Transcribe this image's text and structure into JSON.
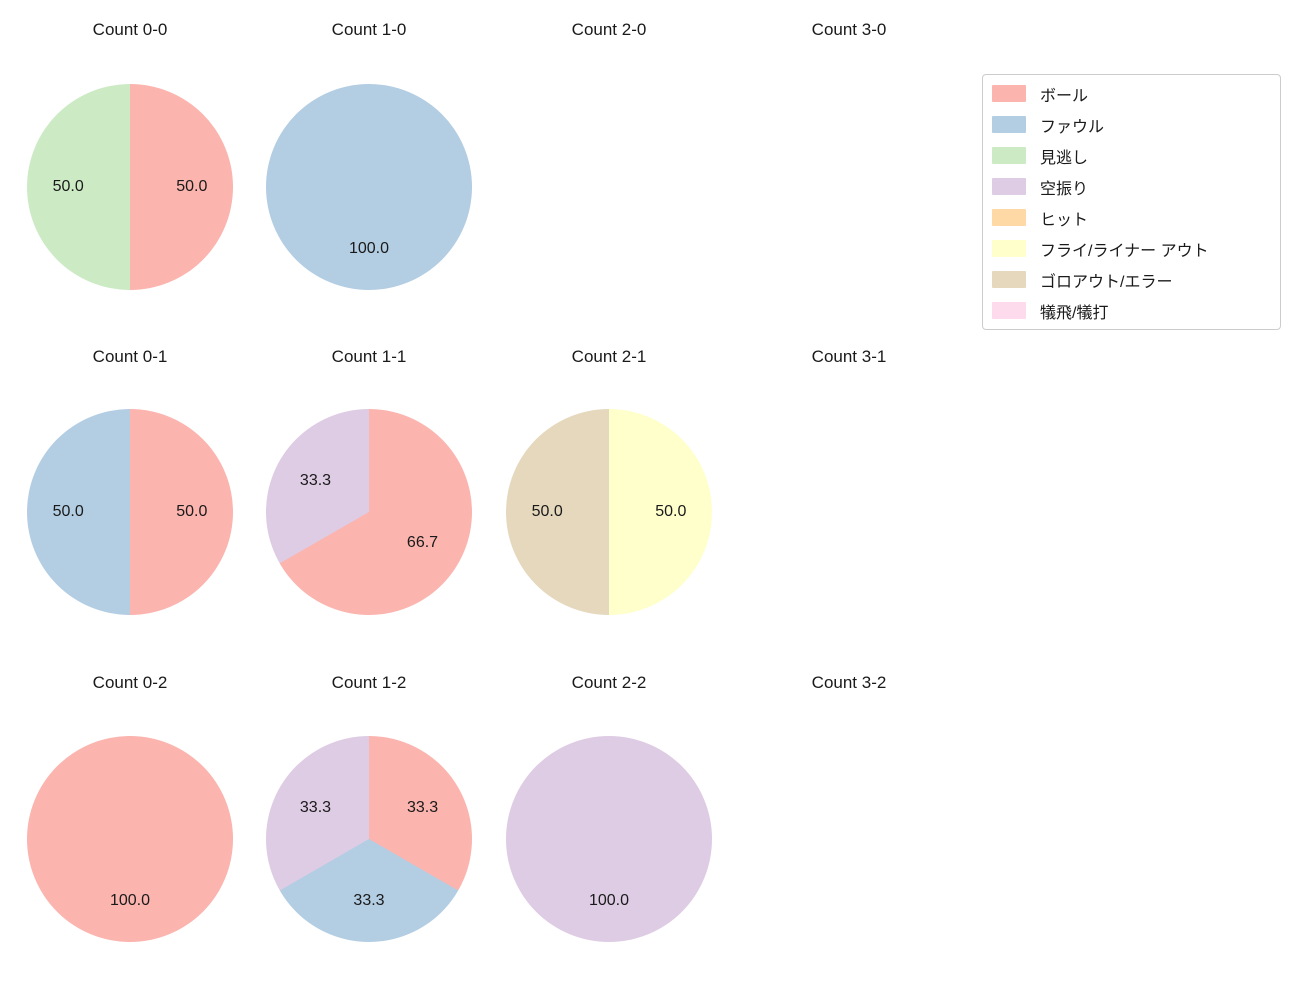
{
  "page": {
    "background": "#ffffff"
  },
  "legend": {
    "position": "upper right",
    "items": [
      {
        "label": "ボール",
        "color": "#fbb4ae"
      },
      {
        "label": "ファウル",
        "color": "#b3cde3"
      },
      {
        "label": "見逃し",
        "color": "#ccebc5"
      },
      {
        "label": "空振り",
        "color": "#decbe4"
      },
      {
        "label": "ヒット",
        "color": "#fed9a6"
      },
      {
        "label": "フライ/ライナー アウト",
        "color": "#ffffcc"
      },
      {
        "label": "ゴロアウト/エラー",
        "color": "#e5d8bd"
      },
      {
        "label": "犠飛/犠打",
        "color": "#fddaec"
      }
    ]
  },
  "chart_layout": {
    "grid": "3 rows x 4 columns",
    "startangle": 90,
    "counterclock": false,
    "pctdistance": 0.6,
    "label_color": "#1a1a1a"
  },
  "chart_data": [
    {
      "type": "pie",
      "title": "Count 0-0",
      "slices": [
        {
          "label": "ボール",
          "value": 50.0,
          "pct_text": "50.0",
          "color": "#fbb4ae"
        },
        {
          "label": "見逃し",
          "value": 50.0,
          "pct_text": "50.0",
          "color": "#ccebc5"
        }
      ]
    },
    {
      "type": "pie",
      "title": "Count 1-0",
      "slices": [
        {
          "label": "ファウル",
          "value": 100.0,
          "pct_text": "100.0",
          "color": "#b3cde3"
        }
      ]
    },
    {
      "type": "pie",
      "title": "Count 2-0",
      "slices": []
    },
    {
      "type": "pie",
      "title": "Count 3-0",
      "slices": []
    },
    {
      "type": "pie",
      "title": "Count 0-1",
      "slices": [
        {
          "label": "ボール",
          "value": 50.0,
          "pct_text": "50.0",
          "color": "#fbb4ae"
        },
        {
          "label": "ファウル",
          "value": 50.0,
          "pct_text": "50.0",
          "color": "#b3cde3"
        }
      ]
    },
    {
      "type": "pie",
      "title": "Count 1-1",
      "slices": [
        {
          "label": "ボール",
          "value": 66.7,
          "pct_text": "66.7",
          "color": "#fbb4ae"
        },
        {
          "label": "空振り",
          "value": 33.3,
          "pct_text": "33.3",
          "color": "#decbe4"
        }
      ]
    },
    {
      "type": "pie",
      "title": "Count 2-1",
      "slices": [
        {
          "label": "フライ/ライナー アウト",
          "value": 50.0,
          "pct_text": "50.0",
          "color": "#ffffcc"
        },
        {
          "label": "ゴロアウト/エラー",
          "value": 50.0,
          "pct_text": "50.0",
          "color": "#e5d8bd"
        }
      ]
    },
    {
      "type": "pie",
      "title": "Count 3-1",
      "slices": []
    },
    {
      "type": "pie",
      "title": "Count 0-2",
      "slices": [
        {
          "label": "ボール",
          "value": 100.0,
          "pct_text": "100.0",
          "color": "#fbb4ae"
        }
      ]
    },
    {
      "type": "pie",
      "title": "Count 1-2",
      "slices": [
        {
          "label": "ボール",
          "value": 33.3,
          "pct_text": "33.3",
          "color": "#fbb4ae"
        },
        {
          "label": "ファウル",
          "value": 33.3,
          "pct_text": "33.3",
          "color": "#b3cde3"
        },
        {
          "label": "空振り",
          "value": 33.3,
          "pct_text": "33.3",
          "color": "#decbe4"
        }
      ]
    },
    {
      "type": "pie",
      "title": "Count 2-2",
      "slices": [
        {
          "label": "空振り",
          "value": 100.0,
          "pct_text": "100.0",
          "color": "#decbe4"
        }
      ]
    },
    {
      "type": "pie",
      "title": "Count 3-2",
      "slices": []
    }
  ]
}
